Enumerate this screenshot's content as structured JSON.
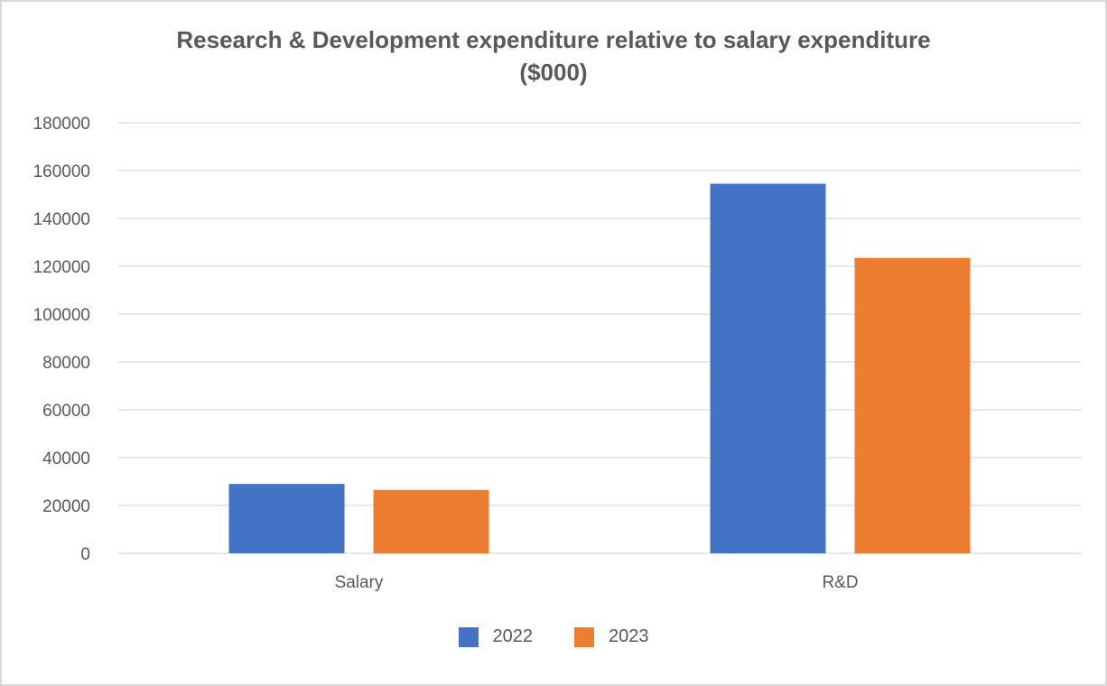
{
  "chart_data": {
    "type": "bar",
    "title": "Research & Development expenditure relative to salary expenditure ($000)",
    "title_lines": [
      "Research & Development expenditure relative to salary expenditure",
      "($000)"
    ],
    "categories": [
      "Salary",
      "R&D"
    ],
    "series": [
      {
        "name": "2022",
        "values": [
          29000,
          154500
        ],
        "color": "#4472c4"
      },
      {
        "name": "2023",
        "values": [
          26500,
          123500
        ],
        "color": "#ed7d31"
      }
    ],
    "ylim": [
      0,
      180000
    ],
    "yticks": [
      0,
      20000,
      40000,
      60000,
      80000,
      100000,
      120000,
      140000,
      160000,
      180000
    ],
    "xlabel": "",
    "ylabel": "",
    "grid": true,
    "legend_position": "bottom",
    "gridline_color": "#d9d9d9",
    "text_color": "#595959"
  }
}
